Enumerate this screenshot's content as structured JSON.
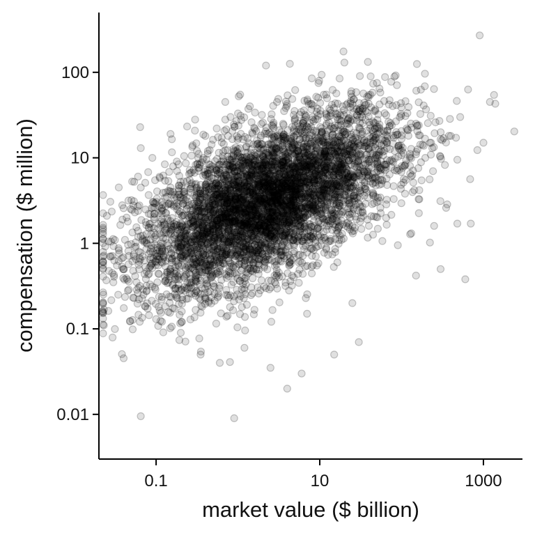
{
  "chart_data": {
    "type": "scatter",
    "title": "",
    "xlabel": "market value ($ billion)",
    "ylabel": "compensation ($ million)",
    "x_scale": "log10",
    "y_scale": "log10",
    "xlim": [
      0.02,
      3000
    ],
    "ylim": [
      0.003,
      500
    ],
    "x_ticks": [
      {
        "value": 0.1,
        "label": "0.1"
      },
      {
        "value": 10,
        "label": "10"
      },
      {
        "value": 1000,
        "label": "1000"
      }
    ],
    "y_ticks": [
      {
        "value": 0.01,
        "label": "0.01"
      },
      {
        "value": 0.1,
        "label": "0.1"
      },
      {
        "value": 1,
        "label": "1"
      },
      {
        "value": 10,
        "label": "10"
      },
      {
        "value": 100,
        "label": "100"
      }
    ],
    "grid": false,
    "legend": "none",
    "marker_color": "#000000",
    "marker_alpha": 0.12,
    "points": [
      [
        2.5,
        1.8
      ],
      [
        5.1,
        3.2
      ],
      [
        8.7,
        6.5
      ],
      [
        15.2,
        9.1
      ],
      [
        0.9,
        1.2
      ],
      [
        1.6,
        2.4
      ],
      [
        3.8,
        4.7
      ],
      [
        22.0,
        12.5
      ],
      [
        45.0,
        16.0
      ],
      [
        120.0,
        21.0
      ],
      [
        260.0,
        26.0
      ],
      [
        0.45,
        0.85
      ],
      [
        0.25,
        0.55
      ],
      [
        0.13,
        0.62
      ],
      [
        0.75,
        3.1
      ],
      [
        1.2,
        5.2
      ],
      [
        2.2,
        8.5
      ],
      [
        4.4,
        12.0
      ],
      [
        7.5,
        18.5
      ],
      [
        12.0,
        24.0
      ],
      [
        30.0,
        35.0
      ],
      [
        70.0,
        42.0
      ],
      [
        0.6,
        0.32
      ],
      [
        1.1,
        0.48
      ],
      [
        2.0,
        0.75
      ],
      [
        3.5,
        0.95
      ],
      [
        6.0,
        1.5
      ],
      [
        10.5,
        2.2
      ],
      [
        18.0,
        3.4
      ],
      [
        35.0,
        5.2
      ],
      [
        75.0,
        7.8
      ],
      [
        150.0,
        11.0
      ],
      [
        400.0,
        18.0
      ],
      [
        0.3,
        1.6
      ],
      [
        0.5,
        2.8
      ],
      [
        0.2,
        1.1
      ],
      [
        0.17,
        0.4
      ],
      [
        0.35,
        0.22
      ],
      [
        0.8,
        0.18
      ],
      [
        1.5,
        0.26
      ],
      [
        2.8,
        0.42
      ],
      [
        5.5,
        0.6
      ],
      [
        9.0,
        0.9
      ],
      [
        16.0,
        1.3
      ],
      [
        28.0,
        1.9
      ],
      [
        55.0,
        2.6
      ],
      [
        110.0,
        3.8
      ],
      [
        220.0,
        5.6
      ],
      [
        480.0,
        9.5
      ],
      [
        0.04,
        0.5
      ],
      [
        0.06,
        1.4
      ],
      [
        0.03,
        0.35
      ],
      [
        0.05,
        3.2
      ],
      [
        0.08,
        6.8
      ],
      [
        0.065,
        13.0
      ],
      [
        0.07,
        0.25
      ],
      [
        0.1,
        0.13
      ],
      [
        0.2,
        0.09
      ],
      [
        0.35,
        0.05
      ],
      [
        0.6,
        0.04
      ],
      [
        1.2,
        0.06
      ],
      [
        2.5,
        0.035
      ],
      [
        4.0,
        0.02
      ],
      [
        6.0,
        0.03
      ],
      [
        0.9,
        0.009
      ],
      [
        0.065,
        0.0095
      ],
      [
        15.0,
        0.05
      ],
      [
        30.0,
        0.07
      ],
      [
        25.0,
        0.2
      ],
      [
        7.0,
        0.15
      ],
      [
        3.0,
        45.0
      ],
      [
        5.0,
        62.0
      ],
      [
        8.0,
        85.0
      ],
      [
        12.0,
        55.0
      ],
      [
        20.0,
        130.0
      ],
      [
        2.2,
        120.0
      ],
      [
        50.0,
        75.0
      ],
      [
        900.0,
        270.0
      ],
      [
        1200.0,
        45.0
      ],
      [
        700.0,
        1.7
      ],
      [
        600.0,
        0.38
      ],
      [
        250.0,
        1.6
      ],
      [
        300.0,
        0.5
      ],
      [
        150.0,
        0.42
      ],
      [
        90.0,
        0.95
      ],
      [
        480.0,
        1.7
      ],
      [
        350.0,
        2.6
      ],
      [
        1000.0,
        15.0
      ],
      [
        0.022,
        0.16
      ],
      [
        0.028,
        0.7
      ],
      [
        0.025,
        2.1
      ],
      [
        0.035,
        4.5
      ],
      [
        0.045,
        1.8
      ],
      [
        0.055,
        0.9
      ],
      [
        0.12,
        2.8
      ],
      [
        0.15,
        4.5
      ],
      [
        0.18,
        7.0
      ],
      [
        0.22,
        10.5
      ],
      [
        0.28,
        14.0
      ],
      [
        0.4,
        18.0
      ],
      [
        0.55,
        22.0
      ],
      [
        0.7,
        28.0
      ],
      [
        1.0,
        33.0
      ],
      [
        1.4,
        40.0
      ],
      [
        0.33,
        3.8
      ],
      [
        0.48,
        5.8
      ],
      [
        0.62,
        7.2
      ],
      [
        0.85,
        9.8
      ],
      [
        1.3,
        11.5
      ],
      [
        1.9,
        14.5
      ],
      [
        2.6,
        17.0
      ],
      [
        3.4,
        20.0
      ],
      [
        4.6,
        23.0
      ],
      [
        6.3,
        27.0
      ],
      [
        9.5,
        31.0
      ],
      [
        13.5,
        36.0
      ],
      [
        19.0,
        40.0
      ],
      [
        26.0,
        48.0
      ],
      [
        38.0,
        52.0
      ],
      [
        55.0,
        58.0
      ],
      [
        0.23,
        0.75
      ],
      [
        0.32,
        0.95
      ],
      [
        0.44,
        1.25
      ],
      [
        0.58,
        1.55
      ],
      [
        0.78,
        1.9
      ],
      [
        1.05,
        2.3
      ],
      [
        1.45,
        2.8
      ],
      [
        1.95,
        3.3
      ],
      [
        2.7,
        4.0
      ],
      [
        3.6,
        4.9
      ],
      [
        4.9,
        5.8
      ],
      [
        6.6,
        7.0
      ],
      [
        8.8,
        8.2
      ],
      [
        11.8,
        9.5
      ],
      [
        15.5,
        10.8
      ],
      [
        20.5,
        12.0
      ],
      [
        27.0,
        13.5
      ],
      [
        36.0,
        15.0
      ],
      [
        48.0,
        17.0
      ],
      [
        64.0,
        18.5
      ],
      [
        86.0,
        20.0
      ],
      [
        115.0,
        22.0
      ],
      [
        155.0,
        23.5
      ],
      [
        210.0,
        25.5
      ],
      [
        290.0,
        27.0
      ],
      [
        390.0,
        28.5
      ],
      [
        520.0,
        30.0
      ],
      [
        0.27,
        0.3
      ],
      [
        0.4,
        0.38
      ],
      [
        0.66,
        0.58
      ],
      [
        1.4,
        0.85
      ],
      [
        2.4,
        1.15
      ],
      [
        4.2,
        1.6
      ],
      [
        7.2,
        2.2
      ],
      [
        12.5,
        3.0
      ],
      [
        21.0,
        4.1
      ],
      [
        40.0,
        6.2
      ],
      [
        65.0,
        8.4
      ],
      [
        100.0,
        10.8
      ],
      [
        180.0,
        14.2
      ],
      [
        300.0,
        16.5
      ],
      [
        0.7,
        45.0
      ],
      [
        0.3,
        28.0
      ],
      [
        0.15,
        19.0
      ],
      [
        0.09,
        10.0
      ],
      [
        0.11,
        6.0
      ],
      [
        0.095,
        2.2
      ],
      [
        0.085,
        0.8
      ]
    ],
    "cloud": {
      "count": 5200,
      "center_log10x": 0.35,
      "sd_log10x": 0.78,
      "slope": 0.4,
      "intercept_log10y": 0.48,
      "sd_log10y": 0.42
    }
  }
}
